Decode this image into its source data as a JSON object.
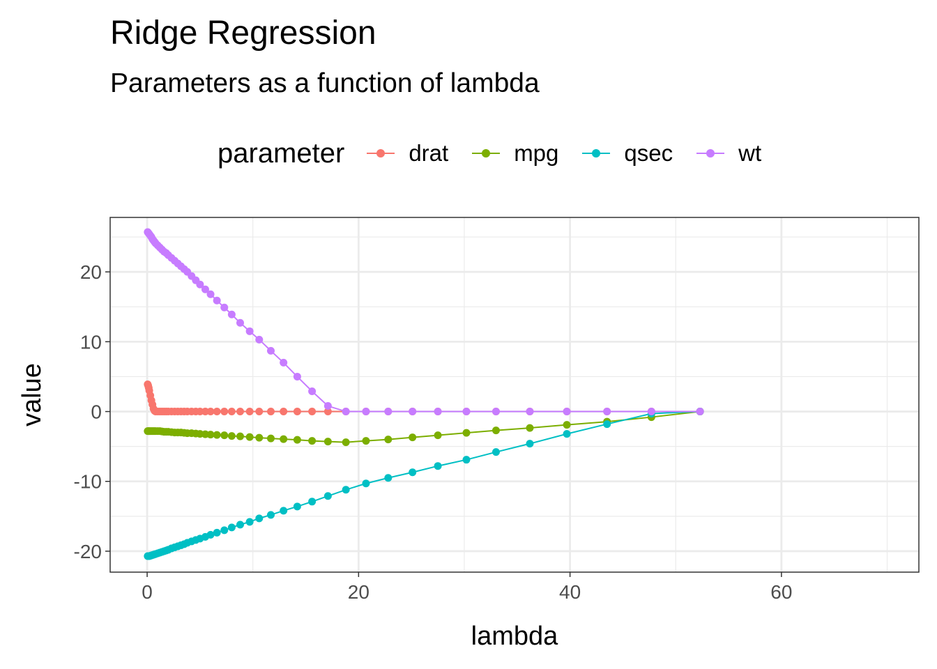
{
  "chart_data": {
    "type": "line",
    "title": "Ridge Regression",
    "subtitle": "Parameters as a function of lambda",
    "xlabel": "lambda",
    "ylabel": "value",
    "xlim": [
      -3.5,
      73
    ],
    "ylim": [
      -23,
      27.8
    ],
    "xticks": [
      0,
      20,
      40,
      60
    ],
    "yticks": [
      -20,
      -10,
      0,
      10,
      20
    ],
    "xtick_labels": [
      "0",
      "20",
      "40",
      "60"
    ],
    "ytick_labels": [
      "-20",
      "-10",
      "0",
      "10",
      "20"
    ],
    "grid": true,
    "legend_title": "parameter",
    "legend_position": "top",
    "x": [
      0.05,
      0.1,
      0.15,
      0.2,
      0.3,
      0.4,
      0.5,
      0.6,
      0.7,
      0.8,
      1.0,
      1.2,
      1.4,
      1.6,
      1.8,
      2.0,
      2.3,
      2.6,
      2.9,
      3.2,
      3.5,
      3.8,
      4.2,
      4.6,
      5.0,
      5.5,
      6.0,
      6.6,
      7.3,
      8.0,
      8.8,
      9.7,
      10.6,
      11.7,
      12.9,
      14.2,
      15.6,
      17.1,
      18.8,
      20.7,
      22.8,
      25.1,
      27.5,
      30.2,
      33.0,
      36.2,
      39.7,
      43.5,
      47.7,
      52.3
    ],
    "series": [
      {
        "name": "drat",
        "color": "#F8766D",
        "values": [
          3.9,
          3.7,
          3.4,
          3.0,
          2.3,
          1.6,
          1.0,
          0.4,
          0.1,
          0.0,
          0,
          0,
          0,
          0,
          0,
          0,
          0,
          0,
          0,
          0,
          0,
          0,
          0,
          0,
          0,
          0,
          0,
          0,
          0,
          0,
          0,
          0,
          0,
          0,
          0,
          0,
          0,
          0,
          0,
          0,
          0,
          0,
          0,
          0,
          0,
          0,
          0,
          0,
          0,
          0
        ]
      },
      {
        "name": "mpg",
        "color": "#7CAE00",
        "values": [
          -2.8,
          -2.8,
          -2.8,
          -2.8,
          -2.8,
          -2.8,
          -2.8,
          -2.8,
          -2.8,
          -2.8,
          -2.8,
          -2.8,
          -2.85,
          -2.9,
          -2.9,
          -2.9,
          -2.95,
          -3.0,
          -3.0,
          -3.0,
          -3.05,
          -3.1,
          -3.1,
          -3.15,
          -3.2,
          -3.25,
          -3.3,
          -3.35,
          -3.4,
          -3.5,
          -3.55,
          -3.65,
          -3.75,
          -3.85,
          -3.95,
          -4.05,
          -4.2,
          -4.3,
          -4.4,
          -4.2,
          -4.0,
          -3.7,
          -3.4,
          -3.05,
          -2.7,
          -2.35,
          -1.9,
          -1.45,
          -0.8,
          0.0
        ]
      },
      {
        "name": "qsec",
        "color": "#00BFC4",
        "values": [
          -20.7,
          -20.7,
          -20.7,
          -20.7,
          -20.65,
          -20.6,
          -20.55,
          -20.5,
          -20.45,
          -20.4,
          -20.3,
          -20.2,
          -20.1,
          -20.0,
          -19.9,
          -19.8,
          -19.6,
          -19.45,
          -19.3,
          -19.15,
          -19.0,
          -18.8,
          -18.6,
          -18.4,
          -18.2,
          -17.95,
          -17.65,
          -17.35,
          -17.0,
          -16.6,
          -16.2,
          -15.8,
          -15.3,
          -14.8,
          -14.2,
          -13.6,
          -12.9,
          -12.1,
          -11.2,
          -10.3,
          -9.5,
          -8.7,
          -7.8,
          -6.9,
          -5.8,
          -4.6,
          -3.2,
          -1.8,
          -0.3,
          0.0
        ]
      },
      {
        "name": "wt",
        "color": "#C77CFF",
        "values": [
          25.7,
          25.6,
          25.5,
          25.4,
          25.2,
          25.0,
          24.7,
          24.5,
          24.3,
          24.1,
          23.8,
          23.5,
          23.2,
          22.9,
          22.7,
          22.4,
          22.0,
          21.6,
          21.2,
          20.8,
          20.4,
          20.0,
          19.4,
          18.8,
          18.2,
          17.5,
          16.8,
          15.9,
          14.9,
          13.9,
          12.7,
          11.5,
          10.3,
          8.7,
          7.0,
          5.0,
          2.9,
          0.8,
          0.0,
          0,
          0,
          0,
          0,
          0,
          0,
          0,
          0,
          0,
          0,
          0
        ]
      }
    ]
  }
}
